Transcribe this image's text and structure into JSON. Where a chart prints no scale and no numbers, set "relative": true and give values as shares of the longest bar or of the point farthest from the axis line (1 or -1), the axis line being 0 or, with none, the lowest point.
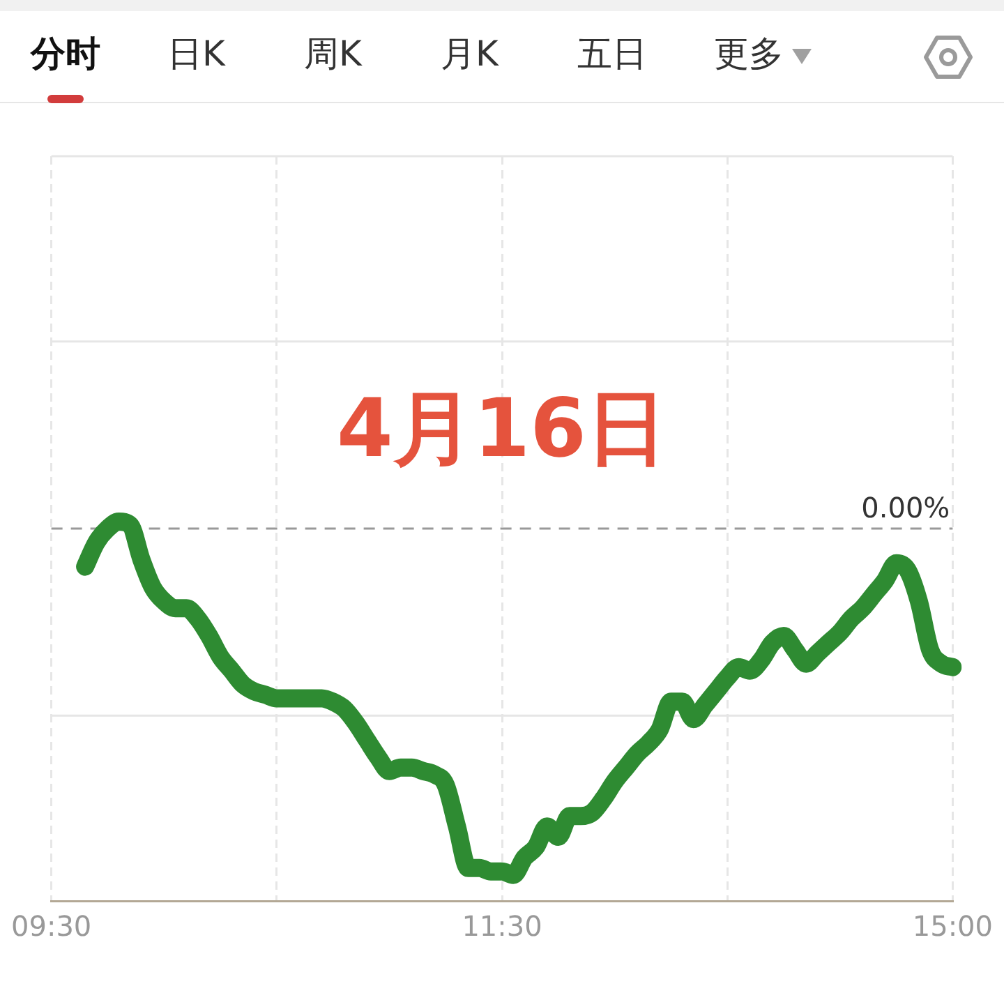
{
  "chart_data": {
    "type": "line",
    "title": "4月16日",
    "annotations": [
      "分时",
      "日K",
      "周K",
      "月K",
      "五日",
      "更多"
    ],
    "categories": [
      "09:30",
      null,
      null,
      null,
      null,
      null,
      null,
      null,
      null,
      null,
      null,
      null,
      null,
      null,
      null,
      null,
      null,
      null,
      null,
      null,
      null,
      null,
      null,
      null,
      null,
      null,
      null,
      null,
      null,
      null,
      null,
      null,
      null,
      null,
      null,
      null,
      null,
      null,
      null,
      null,
      "11:30",
      null,
      null,
      null,
      null,
      null,
      null,
      null,
      null,
      null,
      null,
      null,
      null,
      null,
      null,
      null,
      null,
      null,
      null,
      null,
      null,
      null,
      null,
      null,
      null,
      null,
      null,
      null,
      null,
      null,
      null,
      null,
      null,
      null,
      null,
      null,
      null,
      null,
      null,
      null,
      "15:00"
    ],
    "values": [
      null,
      null,
      null,
      -0.11,
      -0.04,
      0,
      0.02,
      0.01,
      -0.09,
      -0.17,
      -0.21,
      -0.23,
      -0.23,
      -0.26,
      -0.31,
      -0.37,
      -0.41,
      -0.45,
      -0.47,
      -0.48,
      -0.49,
      -0.49,
      -0.49,
      -0.49,
      -0.49,
      -0.5,
      -0.52,
      -0.56,
      -0.61,
      -0.66,
      -0.7,
      -0.69,
      -0.69,
      -0.7,
      -0.71,
      -0.74,
      -0.86,
      -0.98,
      -0.98,
      -0.99,
      -0.99,
      -1,
      -0.95,
      -0.92,
      -0.86,
      -0.89,
      -0.83,
      -0.83,
      -0.82,
      -0.78,
      -0.73,
      -0.69,
      -0.65,
      -0.62,
      -0.58,
      -0.5,
      -0.5,
      -0.55,
      -0.51,
      -0.47,
      -0.43,
      -0.4,
      -0.41,
      -0.38,
      -0.33,
      -0.31,
      -0.35,
      -0.39,
      -0.36,
      -0.33,
      -0.3,
      -0.26,
      -0.23,
      -0.19,
      -0.15,
      -0.1,
      -0.12,
      -0.21,
      -0.35,
      -0.39,
      -0.4
    ],
    "color": "#2e8b32",
    "relative": true,
    "marker": "none",
    "grid": "x",
    "ref_lines": [
      {
        "axis": "y",
        "value": 0,
        "label": "0.00%",
        "color": "#999999",
        "line_style": "dashed"
      },
      {
        "axis": "y",
        "value": 0.54,
        "color": "#e6e6e6",
        "line_style": "solid"
      },
      {
        "axis": "y",
        "value": -0.54,
        "color": "#e6e6e6",
        "line_style": "solid"
      }
    ]
  }
}
